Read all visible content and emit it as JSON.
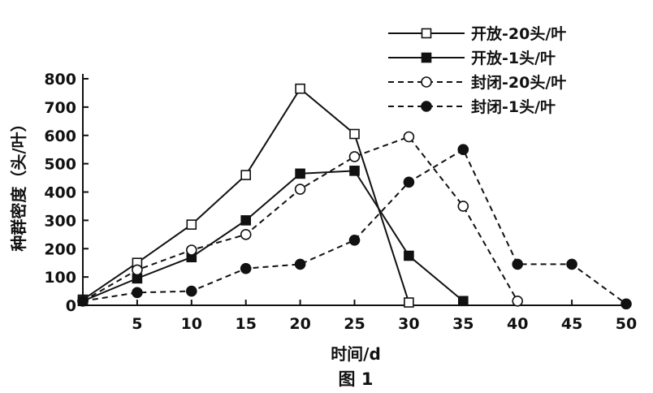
{
  "chart_data": {
    "type": "line",
    "title": "",
    "caption": "图 1",
    "xlabel": "时间/d",
    "ylabel": "种群密度（头/叶）",
    "xlim": [
      0,
      50
    ],
    "ylim": [
      0,
      800
    ],
    "x_ticks": [
      5,
      10,
      15,
      20,
      25,
      30,
      35,
      40,
      45,
      50
    ],
    "y_ticks": [
      0,
      100,
      200,
      300,
      400,
      500,
      600,
      700,
      800
    ],
    "grid": false,
    "legend_position": "top-right",
    "series": [
      {
        "name": "开放-20头/叶",
        "marker": "open-square",
        "line": "solid",
        "points": [
          [
            0,
            20
          ],
          [
            5,
            150
          ],
          [
            10,
            285
          ],
          [
            15,
            460
          ],
          [
            20,
            765
          ],
          [
            25,
            605
          ],
          [
            30,
            10
          ]
        ]
      },
      {
        "name": "开放-1头/叶",
        "marker": "filled-square",
        "line": "solid",
        "points": [
          [
            0,
            15
          ],
          [
            5,
            95
          ],
          [
            10,
            170
          ],
          [
            15,
            300
          ],
          [
            20,
            465
          ],
          [
            25,
            475
          ],
          [
            30,
            175
          ],
          [
            35,
            15
          ]
        ]
      },
      {
        "name": "封闭-20头/叶",
        "marker": "open-circle",
        "line": "dashed",
        "points": [
          [
            0,
            15
          ],
          [
            5,
            125
          ],
          [
            10,
            195
          ],
          [
            15,
            250
          ],
          [
            20,
            410
          ],
          [
            25,
            525
          ],
          [
            30,
            595
          ],
          [
            35,
            350
          ],
          [
            40,
            15
          ]
        ]
      },
      {
        "name": "封闭-1头/叶",
        "marker": "filled-circle",
        "line": "dashed",
        "points": [
          [
            0,
            15
          ],
          [
            5,
            45
          ],
          [
            10,
            50
          ],
          [
            15,
            130
          ],
          [
            20,
            145
          ],
          [
            25,
            230
          ],
          [
            30,
            435
          ],
          [
            35,
            550
          ],
          [
            40,
            145
          ],
          [
            45,
            145
          ],
          [
            50,
            5
          ]
        ]
      }
    ]
  }
}
